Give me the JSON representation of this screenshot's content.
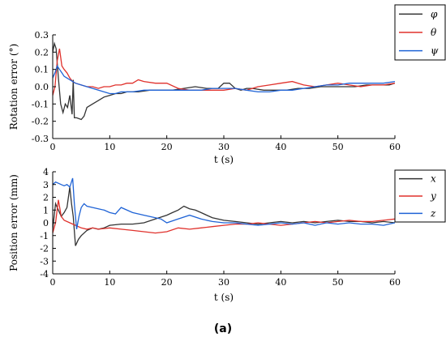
{
  "caption": "(a)",
  "chart_data": [
    {
      "type": "line",
      "title": "",
      "xlabel": "t (s)",
      "ylabel": "Rotation error (°)",
      "xlim": [
        0,
        60
      ],
      "ylim": [
        -0.3,
        0.3
      ],
      "xticks": [
        "0",
        "10",
        "20",
        "30",
        "40",
        "50",
        "60"
      ],
      "yticks": [
        "0.3",
        "0.2",
        "0.1",
        "0.0",
        "-0.1",
        "-0.2",
        "-0.3"
      ],
      "legend_position": "top-right, outside",
      "grid": false,
      "series": [
        {
          "name": "φ",
          "color": "#333333",
          "x": [
            0,
            0.3,
            0.6,
            1,
            1.4,
            1.8,
            2.2,
            2.6,
            3,
            3.4,
            3.6,
            3.8,
            4.2,
            5,
            5.5,
            6,
            7,
            8,
            9,
            10,
            11,
            12,
            13,
            14,
            15,
            17,
            19,
            21,
            23,
            25,
            27,
            29,
            30,
            31,
            32,
            33,
            34,
            35,
            37,
            39,
            41,
            43,
            45,
            47,
            49,
            51,
            53,
            55,
            57,
            59,
            60
          ],
          "y": [
            0.2,
            0.25,
            0.22,
            0.05,
            -0.1,
            -0.15,
            -0.1,
            -0.12,
            -0.05,
            -0.16,
            0.04,
            -0.18,
            -0.18,
            -0.19,
            -0.17,
            -0.12,
            -0.1,
            -0.08,
            -0.06,
            -0.05,
            -0.04,
            -0.04,
            -0.03,
            -0.03,
            -0.03,
            -0.02,
            -0.02,
            -0.02,
            -0.01,
            0.0,
            -0.01,
            -0.01,
            0.02,
            0.02,
            -0.01,
            -0.02,
            -0.01,
            -0.01,
            -0.02,
            -0.02,
            -0.02,
            -0.01,
            -0.01,
            0.0,
            0.0,
            0.0,
            0.0,
            0.01,
            0.01,
            0.01,
            0.02
          ]
        },
        {
          "name": "θ",
          "color": "#e0312c",
          "x": [
            0,
            0.4,
            0.8,
            1.2,
            1.6,
            2,
            2.5,
            3,
            3.5,
            4,
            5,
            6,
            7,
            8,
            9,
            10,
            11,
            12,
            13,
            14,
            15,
            16,
            18,
            20,
            22,
            24,
            26,
            28,
            30,
            32,
            34,
            36,
            38,
            40,
            42,
            44,
            46,
            48,
            50,
            52,
            54,
            56,
            58,
            60
          ],
          "y": [
            -0.05,
            0.0,
            0.15,
            0.22,
            0.12,
            0.1,
            0.08,
            0.05,
            0.03,
            0.02,
            0.01,
            0.0,
            0.0,
            -0.01,
            0.0,
            0.0,
            0.01,
            0.01,
            0.02,
            0.02,
            0.04,
            0.03,
            0.02,
            0.02,
            -0.01,
            -0.02,
            -0.02,
            -0.02,
            -0.02,
            -0.01,
            -0.02,
            0.0,
            0.01,
            0.02,
            0.03,
            0.01,
            0.0,
            0.01,
            0.02,
            0.01,
            0.0,
            0.01,
            0.01,
            0.02
          ]
        },
        {
          "name": "ψ",
          "color": "#1f63d6",
          "x": [
            0,
            0.4,
            0.8,
            1.2,
            1.6,
            2,
            2.5,
            3,
            3.5,
            4,
            5,
            6,
            7,
            8,
            9,
            10,
            11,
            12,
            13,
            14,
            16,
            18,
            20,
            22,
            24,
            26,
            28,
            30,
            32,
            34,
            36,
            38,
            40,
            42,
            44,
            46,
            48,
            50,
            52,
            54,
            56,
            58,
            60
          ],
          "y": [
            0.05,
            0.08,
            0.12,
            0.1,
            0.08,
            0.06,
            0.05,
            0.04,
            0.03,
            0.02,
            0.01,
            0.0,
            -0.01,
            -0.02,
            -0.03,
            -0.04,
            -0.04,
            -0.03,
            -0.03,
            -0.03,
            -0.02,
            -0.02,
            -0.02,
            -0.02,
            -0.02,
            -0.02,
            -0.01,
            -0.01,
            -0.01,
            -0.02,
            -0.03,
            -0.03,
            -0.02,
            -0.02,
            -0.01,
            0.0,
            0.01,
            0.01,
            0.02,
            0.02,
            0.02,
            0.02,
            0.03
          ]
        }
      ]
    },
    {
      "type": "line",
      "title": "",
      "xlabel": "t (s)",
      "ylabel": "Position error (mm)",
      "xlim": [
        0,
        60
      ],
      "ylim": [
        -4,
        4
      ],
      "xticks": [
        "0",
        "10",
        "20",
        "30",
        "40",
        "50",
        "60"
      ],
      "yticks": [
        "4",
        "3",
        "2",
        "1",
        "0",
        "-1",
        "-2",
        "-3",
        "-4"
      ],
      "legend_position": "top-right, outside",
      "grid": false,
      "series": [
        {
          "name": "x",
          "color": "#333333",
          "x": [
            0,
            0.5,
            1,
            1.5,
            2,
            2.5,
            3,
            3.3,
            3.6,
            4,
            4.5,
            5,
            6,
            7,
            8,
            9,
            10,
            12,
            14,
            16,
            18,
            20,
            21,
            22,
            23,
            24,
            25,
            26,
            27,
            28,
            30,
            32,
            34,
            36,
            38,
            40,
            42,
            44,
            46,
            48,
            50,
            52,
            54,
            56,
            58,
            60
          ],
          "y": [
            -0.5,
            1.5,
            1.0,
            0.5,
            0.8,
            1.2,
            2.8,
            1.5,
            0.5,
            -1.8,
            -1.3,
            -1.0,
            -0.6,
            -0.4,
            -0.5,
            -0.4,
            -0.2,
            -0.1,
            -0.1,
            0.0,
            0.3,
            0.6,
            0.8,
            1.0,
            1.3,
            1.1,
            1.0,
            0.8,
            0.6,
            0.4,
            0.2,
            0.1,
            0.0,
            -0.1,
            0.0,
            0.1,
            0.0,
            0.1,
            0.0,
            0.1,
            0.2,
            0.1,
            0.1,
            0.0,
            0.1,
            0.0
          ]
        },
        {
          "name": "y",
          "color": "#e0312c",
          "x": [
            0,
            0.5,
            1,
            1.5,
            2,
            3,
            4,
            5,
            6,
            7,
            8,
            10,
            12,
            14,
            16,
            18,
            20,
            22,
            24,
            26,
            28,
            30,
            32,
            34,
            36,
            38,
            40,
            42,
            44,
            46,
            48,
            50,
            52,
            54,
            56,
            58,
            60
          ],
          "y": [
            -0.8,
            0.0,
            1.8,
            0.5,
            0.2,
            0.0,
            -0.2,
            -0.4,
            -0.5,
            -0.4,
            -0.5,
            -0.4,
            -0.5,
            -0.6,
            -0.7,
            -0.8,
            -0.7,
            -0.4,
            -0.5,
            -0.4,
            -0.3,
            -0.2,
            -0.1,
            -0.1,
            0.0,
            -0.1,
            -0.2,
            -0.1,
            0.0,
            0.1,
            0.0,
            0.1,
            0.2,
            0.1,
            0.1,
            0.2,
            0.3
          ]
        },
        {
          "name": "z",
          "color": "#1f63d6",
          "x": [
            0,
            0.5,
            1,
            1.5,
            2,
            2.5,
            3,
            3.5,
            3.8,
            4.2,
            4.6,
            5,
            5.5,
            6,
            7,
            8,
            9,
            10,
            11,
            12,
            14,
            16,
            18,
            19,
            20,
            22,
            24,
            26,
            28,
            30,
            32,
            34,
            36,
            38,
            40,
            42,
            44,
            46,
            48,
            50,
            52,
            54,
            56,
            58,
            60
          ],
          "y": [
            3.0,
            3.2,
            3.1,
            3.0,
            2.9,
            3.0,
            2.8,
            3.5,
            1.5,
            -0.5,
            0.5,
            1.2,
            1.5,
            1.3,
            1.2,
            1.1,
            1.0,
            0.8,
            0.7,
            1.2,
            0.8,
            0.6,
            0.4,
            0.3,
            0.0,
            0.3,
            0.6,
            0.3,
            0.1,
            0.0,
            0.0,
            -0.1,
            -0.2,
            -0.1,
            0.0,
            -0.1,
            0.0,
            -0.2,
            0.0,
            -0.1,
            0.0,
            -0.1,
            -0.1,
            -0.2,
            0.0
          ]
        }
      ]
    }
  ]
}
